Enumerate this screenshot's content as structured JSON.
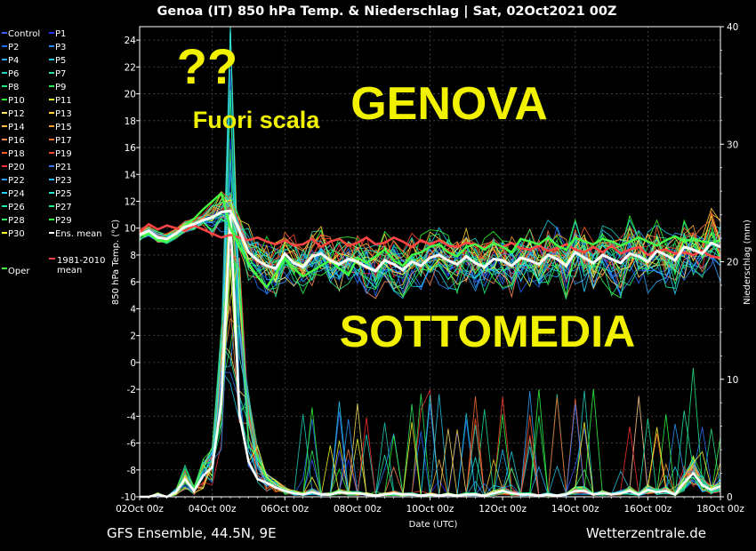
{
  "chart_data": {
    "type": "line",
    "title": "Genoa  (IT)  850 hPa Temp. & Niederschlag | Sat, 02Oct2021 00Z",
    "ylabel_left": "850 hPa Temp. (°C)",
    "ylabel_right": "Niederschlag (mm)",
    "xlabel": "Date (UTC)",
    "x_ticks": [
      "02Oct 00z",
      "04Oct 00z",
      "06Oct 00z",
      "08Oct 00z",
      "10Oct 00z",
      "12Oct 00z",
      "14Oct 00z",
      "16Oct 00z",
      "18Oct 00z"
    ],
    "y_left_ticks": [
      -10,
      -8,
      -6,
      -4,
      -2,
      0,
      2,
      4,
      6,
      8,
      10,
      12,
      14,
      16,
      18,
      20,
      22,
      24
    ],
    "y_right_ticks": [
      0,
      10,
      20,
      30,
      40
    ],
    "ylim_left": [
      -10,
      25
    ],
    "ylim_right": [
      0,
      40
    ],
    "xlim_days": [
      0,
      16
    ],
    "grid": true,
    "legend_position": "left",
    "footer_left": "GFS Ensemble, 44.5N, 9E",
    "footer_right": "Wetterzentrale.de",
    "legend": [
      {
        "name": "Control",
        "color": "#3b5bff"
      },
      {
        "name": "P1",
        "color": "#2233ff"
      },
      {
        "name": "P2",
        "color": "#1e6bff"
      },
      {
        "name": "P3",
        "color": "#2a8cff"
      },
      {
        "name": "P4",
        "color": "#2fa6ff"
      },
      {
        "name": "P5",
        "color": "#22c8e6"
      },
      {
        "name": "P6",
        "color": "#1fd3c0"
      },
      {
        "name": "P7",
        "color": "#1fe0a0"
      },
      {
        "name": "P8",
        "color": "#22e880"
      },
      {
        "name": "P9",
        "color": "#2aef5a"
      },
      {
        "name": "P10",
        "color": "#33ff33"
      },
      {
        "name": "P11",
        "color": "#e8ff33"
      },
      {
        "name": "P12",
        "color": "#ffe566"
      },
      {
        "name": "P13",
        "color": "#ffd633"
      },
      {
        "name": "P14",
        "color": "#ffbb44"
      },
      {
        "name": "P15",
        "color": "#ffa033"
      },
      {
        "name": "P16",
        "color": "#ff8855"
      },
      {
        "name": "P17",
        "color": "#ff7033"
      },
      {
        "name": "P18",
        "color": "#ff5a22"
      },
      {
        "name": "P19",
        "color": "#ff4433"
      },
      {
        "name": "P20",
        "color": "#ff3333"
      },
      {
        "name": "P21",
        "color": "#3377ff"
      },
      {
        "name": "P22",
        "color": "#2a99ff"
      },
      {
        "name": "P23",
        "color": "#22bbff"
      },
      {
        "name": "P24",
        "color": "#22d4ff"
      },
      {
        "name": "P25",
        "color": "#22e6d0"
      },
      {
        "name": "P26",
        "color": "#22eeaa"
      },
      {
        "name": "P27",
        "color": "#22f088"
      },
      {
        "name": "P28",
        "color": "#33f066"
      },
      {
        "name": "P29",
        "color": "#33ff44"
      },
      {
        "name": "P30",
        "color": "#ffff33"
      },
      {
        "name": "Ens. mean",
        "color": "#ffffff"
      },
      {
        "name": "Oper",
        "color": "#44ff44"
      },
      {
        "name": "1981-2010 mean",
        "color": "#ff4444"
      }
    ],
    "temp_x": [
      0,
      0.25,
      0.5,
      0.75,
      1,
      1.25,
      1.5,
      1.75,
      2,
      2.25,
      2.5,
      2.75,
      3,
      3.25,
      3.5,
      3.75,
      4,
      4.25,
      4.5,
      4.75,
      5,
      5.25,
      5.5,
      5.75,
      6,
      6.25,
      6.5,
      6.75,
      7,
      7.25,
      7.5,
      7.75,
      8,
      8.25,
      8.5,
      8.75,
      9,
      9.25,
      9.5,
      9.75,
      10,
      10.25,
      10.5,
      10.75,
      11,
      11.25,
      11.5,
      11.75,
      12,
      12.25,
      12.5,
      12.75,
      13,
      13.25,
      13.5,
      13.75,
      14,
      14.25,
      14.5,
      14.75,
      15,
      15.25,
      15.5,
      15.75,
      16
    ],
    "ens_mean_temp": [
      9.5,
      9.8,
      9.3,
      9.2,
      9.6,
      10.1,
      10.3,
      10.6,
      10.8,
      11.2,
      11.3,
      9.8,
      8.2,
      7.6,
      7.2,
      7.0,
      8.1,
      7.4,
      7.1,
      7.9,
      8.1,
      7.6,
      7.3,
      7.7,
      7.5,
      7.1,
      6.8,
      7.6,
      7.3,
      6.9,
      7.5,
      7.2,
      7.8,
      8.0,
      7.6,
      7.3,
      7.9,
      7.4,
      7.1,
      7.7,
      7.6,
      7.2,
      7.8,
      7.6,
      7.3,
      8.0,
      7.7,
      7.2,
      8.2,
      7.8,
      7.4,
      8.0,
      7.7,
      7.4,
      8.1,
      7.9,
      7.5,
      8.3,
      8.0,
      7.6,
      8.6,
      8.4,
      8.1,
      8.9,
      8.6
    ],
    "climate_mean_temp": [
      9.7,
      10.3,
      9.9,
      10.2,
      10.0,
      9.8,
      10.2,
      9.9,
      9.6,
      9.3,
      9.5,
      9.3,
      9.1,
      9.3,
      9.0,
      8.8,
      9.1,
      8.7,
      8.8,
      9.2,
      8.6,
      9.0,
      9.2,
      8.7,
      8.9,
      9.3,
      8.8,
      8.9,
      9.3,
      9.0,
      8.6,
      9.1,
      8.8,
      9.1,
      8.7,
      8.6,
      8.9,
      8.8,
      8.5,
      8.9,
      8.6,
      8.9,
      8.5,
      8.4,
      8.7,
      8.3,
      8.5,
      8.8,
      8.4,
      8.2,
      8.6,
      8.2,
      8.7,
      8.1,
      8.4,
      8.6,
      8.0,
      8.3,
      8.4,
      8.1,
      8.2,
      8.0,
      8.3,
      7.9,
      7.8
    ],
    "oper_temp": [
      9.4,
      9.6,
      9.1,
      9.0,
      9.5,
      10.2,
      10.7,
      11.4,
      12.0,
      12.6,
      10.0,
      8.6,
      7.4,
      6.4,
      5.6,
      6.6,
      7.8,
      7.0,
      6.4,
      6.8,
      7.2,
      7.6,
      7.0,
      6.5,
      7.8,
      7.4,
      7.9,
      8.4,
      7.6,
      7.2,
      8.0,
      8.2,
      8.6,
      8.8,
      8.2,
      7.9,
      8.6,
      8.8,
      8.4,
      8.9,
      8.6,
      8.2,
      9.2,
      9.0,
      8.8,
      9.3,
      8.7,
      8.4,
      9.3,
      9.0,
      8.8,
      9.2,
      9.0,
      8.7,
      9.0,
      9.3,
      9.0,
      8.7,
      9.1,
      9.4,
      9.0,
      9.2,
      9.0,
      8.9,
      9.1
    ],
    "ens_mean_precip_mm": [
      0,
      0,
      0.2,
      0,
      0.4,
      1.5,
      0.5,
      1.8,
      2.5,
      8,
      24,
      7,
      3,
      1.5,
      1.2,
      0.8,
      0.5,
      0.3,
      0.2,
      0.4,
      0.2,
      0.2,
      0.4,
      0.3,
      0.3,
      0.2,
      0.1,
      0.2,
      0.3,
      0.2,
      0.2,
      0.1,
      0.2,
      0.1,
      0.2,
      0.1,
      0.2,
      0.2,
      0.1,
      0.3,
      0.5,
      0.3,
      0.2,
      0.2,
      0.1,
      0.2,
      0.1,
      0.2,
      0.5,
      0.5,
      0.2,
      0.3,
      0.2,
      0.3,
      0.5,
      0.2,
      0.6,
      0.4,
      0.5,
      0.2,
      1.2,
      2.0,
      1.0,
      0.6,
      0.9
    ]
  },
  "annotations": {
    "question": "??",
    "fuori_scala": "Fuori scala",
    "genova": "GENOVA",
    "sottomedia": "SOTTOMEDIA"
  },
  "colors": {
    "annotation": "#f2f200",
    "background": "#000000",
    "axis": "#ffffff",
    "grid": "#555555"
  }
}
